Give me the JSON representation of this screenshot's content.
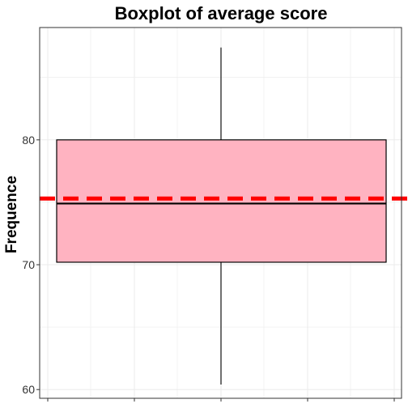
{
  "chart_data": {
    "type": "boxplot",
    "title": "Boxplot of average score",
    "xlabel": "",
    "ylabel": "Frequence",
    "ylim": [
      59.3,
      89.0
    ],
    "yticks": [
      60,
      70,
      80
    ],
    "ytick_labels": [
      "60",
      "70",
      "80"
    ],
    "grid": true,
    "box": {
      "min": 60.4,
      "q1": 70.2,
      "median": 74.9,
      "q3": 80.0,
      "max": 87.4
    },
    "reference_line": {
      "value": 75.3,
      "style": "dashed",
      "color": "#ff0000"
    },
    "colors": {
      "box_fill": "#ffb3c1",
      "box_stroke": "#000000",
      "whisker": "#333333",
      "grid": "#ebebeb",
      "panel_border": "#333333"
    }
  }
}
